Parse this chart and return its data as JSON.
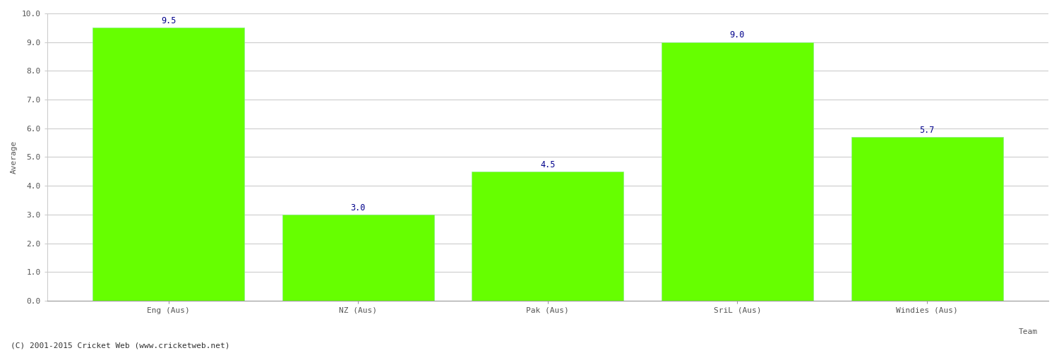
{
  "categories": [
    "Eng (Aus)",
    "NZ (Aus)",
    "Pak (Aus)",
    "SriL (Aus)",
    "Windies (Aus)"
  ],
  "values": [
    9.5,
    3.0,
    4.5,
    9.0,
    5.7
  ],
  "bar_color": "#66ff00",
  "bar_edge_color": "#88ee88",
  "value_label_color": "#00008b",
  "value_label_fontsize": 8.5,
  "xlabel": "Team",
  "ylabel": "Average",
  "ylabel_fontsize": 8,
  "xlabel_fontsize": 8,
  "ylim": [
    0,
    10.0
  ],
  "yticks": [
    0.0,
    1.0,
    2.0,
    3.0,
    4.0,
    5.0,
    6.0,
    7.0,
    8.0,
    9.0,
    10.0
  ],
  "grid_color": "#cccccc",
  "background_color": "#ffffff",
  "tick_label_fontsize": 8,
  "tick_label_color": "#555555",
  "footer_text": "(C) 2001-2015 Cricket Web (www.cricketweb.net)",
  "footer_fontsize": 8,
  "footer_color": "#333333",
  "bar_width": 0.8
}
